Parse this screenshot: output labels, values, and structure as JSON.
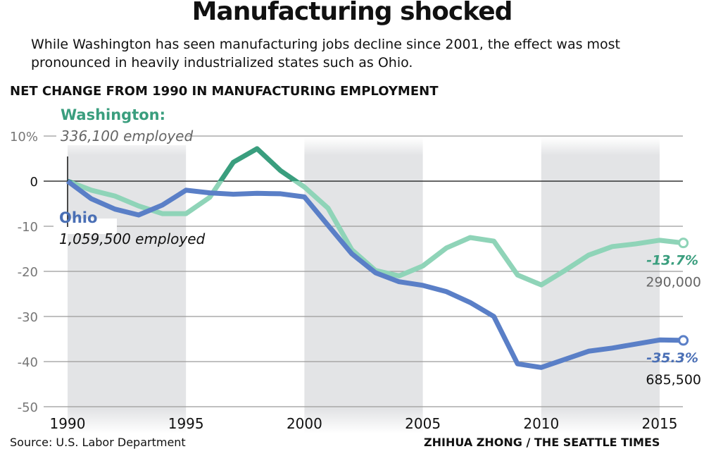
{
  "title": "Manufacturing shocked",
  "subtitle": "While Washington has seen manufacturing jobs decline since 2001, the effect was most pronounced in heavily industrialized states such as Ohio.",
  "chart_data": {
    "type": "line",
    "title": "NET CHANGE FROM 1990 IN MANUFACTURING EMPLOYMENT",
    "xlim": [
      1990,
      2016
    ],
    "ylim": [
      -50,
      10
    ],
    "x_ticks": [
      1990,
      1995,
      2000,
      2005,
      2010,
      2015
    ],
    "y_ticks": [
      {
        "v": 10,
        "label": "10%"
      },
      {
        "v": 0,
        "label": "0"
      },
      {
        "v": -10,
        "label": "-10"
      },
      {
        "v": -20,
        "label": "-20"
      },
      {
        "v": -30,
        "label": "-30"
      },
      {
        "v": -40,
        "label": "-40"
      },
      {
        "v": -50,
        "label": "-50"
      }
    ],
    "shaded_periods": [
      [
        1990,
        1995
      ],
      [
        2000,
        2005
      ],
      [
        2010,
        2015
      ]
    ],
    "x": [
      1990,
      1991,
      1992,
      1993,
      1994,
      1995,
      1996,
      1997,
      1998,
      1999,
      2000,
      2001,
      2002,
      2003,
      2004,
      2005,
      2006,
      2007,
      2008,
      2009,
      2010,
      2011,
      2012,
      2013,
      2014,
      2015,
      2016
    ],
    "series": [
      {
        "name": "Washington:",
        "start_label": "336,100 employed",
        "end_value_label": "-13.7%",
        "end_count_label": "290,000",
        "color": "#8fd4b8",
        "color_positive": "#3a9e7e",
        "label_color": "#3a9e7e",
        "values": [
          0,
          -2,
          -3.3,
          -5.5,
          -7.2,
          -7.2,
          -3.6,
          4.2,
          7.2,
          2.3,
          -1.3,
          -6,
          -15.2,
          -19.8,
          -21,
          -18.8,
          -14.8,
          -12.5,
          -13.3,
          -20.8,
          -23,
          -19.8,
          -16.4,
          -14.5,
          -13.9,
          -13.1,
          -13.7
        ]
      },
      {
        "name": "Ohio",
        "start_label": "1,059,500 employed",
        "end_value_label": "-35.3%",
        "end_count_label": "685,500",
        "color": "#5a7fc7",
        "label_color": "#4a6fb5",
        "values": [
          0,
          -3.9,
          -6.2,
          -7.5,
          -5.3,
          -2,
          -2.6,
          -2.9,
          -2.7,
          -2.8,
          -3.5,
          -9.8,
          -16.1,
          -20.3,
          -22.3,
          -23.1,
          -24.5,
          -26.9,
          -30,
          -40.5,
          -41.3,
          -39.5,
          -37.7,
          -37,
          -36.1,
          -35.2,
          -35.3
        ]
      }
    ]
  },
  "footer": {
    "source": "Source: U.S. Labor Department",
    "credit": "ZHIHUA ZHONG / THE SEATTLE TIMES"
  }
}
